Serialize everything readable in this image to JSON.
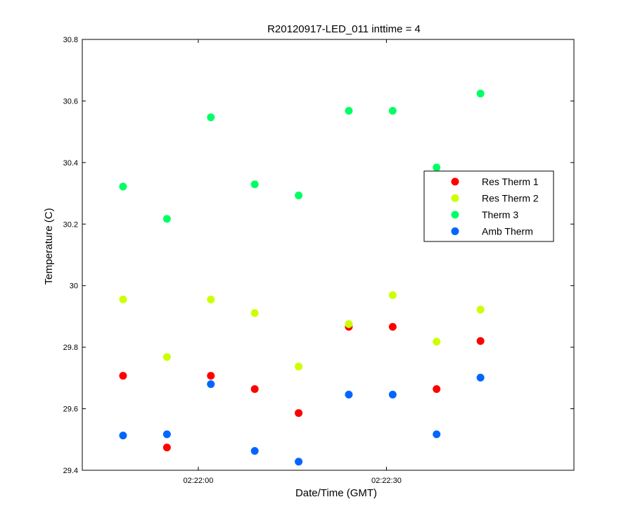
{
  "chart_data": {
    "type": "scatter",
    "title": "R20120917-LED_011 inttime = 4",
    "xlabel": "Date/Time (GMT)",
    "ylabel": "Temperature (C)",
    "x_unit": "time of day (GMT), hh:mm:ss",
    "xlim": [
      "02:21:41.5",
      "02:22:59.9"
    ],
    "ylim": [
      29.4,
      30.8
    ],
    "yticks": [
      "29.4",
      "29.6",
      "29.8",
      "30",
      "30.2",
      "30.4",
      "30.6",
      "30.8"
    ],
    "xticks": [
      "02:22:00",
      "02:22:30"
    ],
    "grid": false,
    "legend_position": "upper right",
    "x": [
      "02:21:48",
      "02:21:55",
      "02:22:02",
      "02:22:09",
      "02:22:16",
      "02:22:24",
      "02:22:31",
      "02:22:38",
      "02:22:45"
    ],
    "series": [
      {
        "name": "Res Therm 1",
        "color": "#ff0000",
        "x": [
          "02:21:48",
          "02:21:55",
          "02:22:02",
          "02:22:09",
          "02:22:16",
          "02:22:24",
          "02:22:31",
          "02:22:38",
          "02:22:45"
        ],
        "values": [
          29.707,
          29.474,
          29.707,
          29.664,
          29.586,
          29.866,
          29.866,
          29.664,
          29.82
        ]
      },
      {
        "name": "Res Therm 2",
        "color": "#ccff00",
        "x": [
          "02:21:48",
          "02:21:55",
          "02:22:02",
          "02:22:09",
          "02:22:16",
          "02:22:24",
          "02:22:31",
          "02:22:38",
          "02:22:45"
        ],
        "values": [
          29.955,
          29.768,
          29.955,
          29.911,
          29.737,
          29.875,
          29.969,
          29.818,
          29.922
        ]
      },
      {
        "name": "Therm 3",
        "color": "#00ff66",
        "x": [
          "02:21:48",
          "02:21:55",
          "02:22:02",
          "02:22:09",
          "02:22:16",
          "02:22:24",
          "02:22:31",
          "02:22:38",
          "02:22:45"
        ],
        "values": [
          30.322,
          30.217,
          30.547,
          30.329,
          30.293,
          30.568,
          30.568,
          30.384,
          30.624
        ]
      },
      {
        "name": "Amb Therm",
        "color": "#0066ff",
        "x": [
          "02:21:48",
          "02:21:55",
          "02:22:02",
          "02:22:09",
          "02:22:16",
          "02:22:24",
          "02:22:31",
          "02:22:38",
          "02:22:45"
        ],
        "values": [
          29.513,
          29.517,
          29.68,
          29.463,
          29.428,
          29.646,
          29.646,
          29.517,
          29.701
        ]
      }
    ]
  }
}
